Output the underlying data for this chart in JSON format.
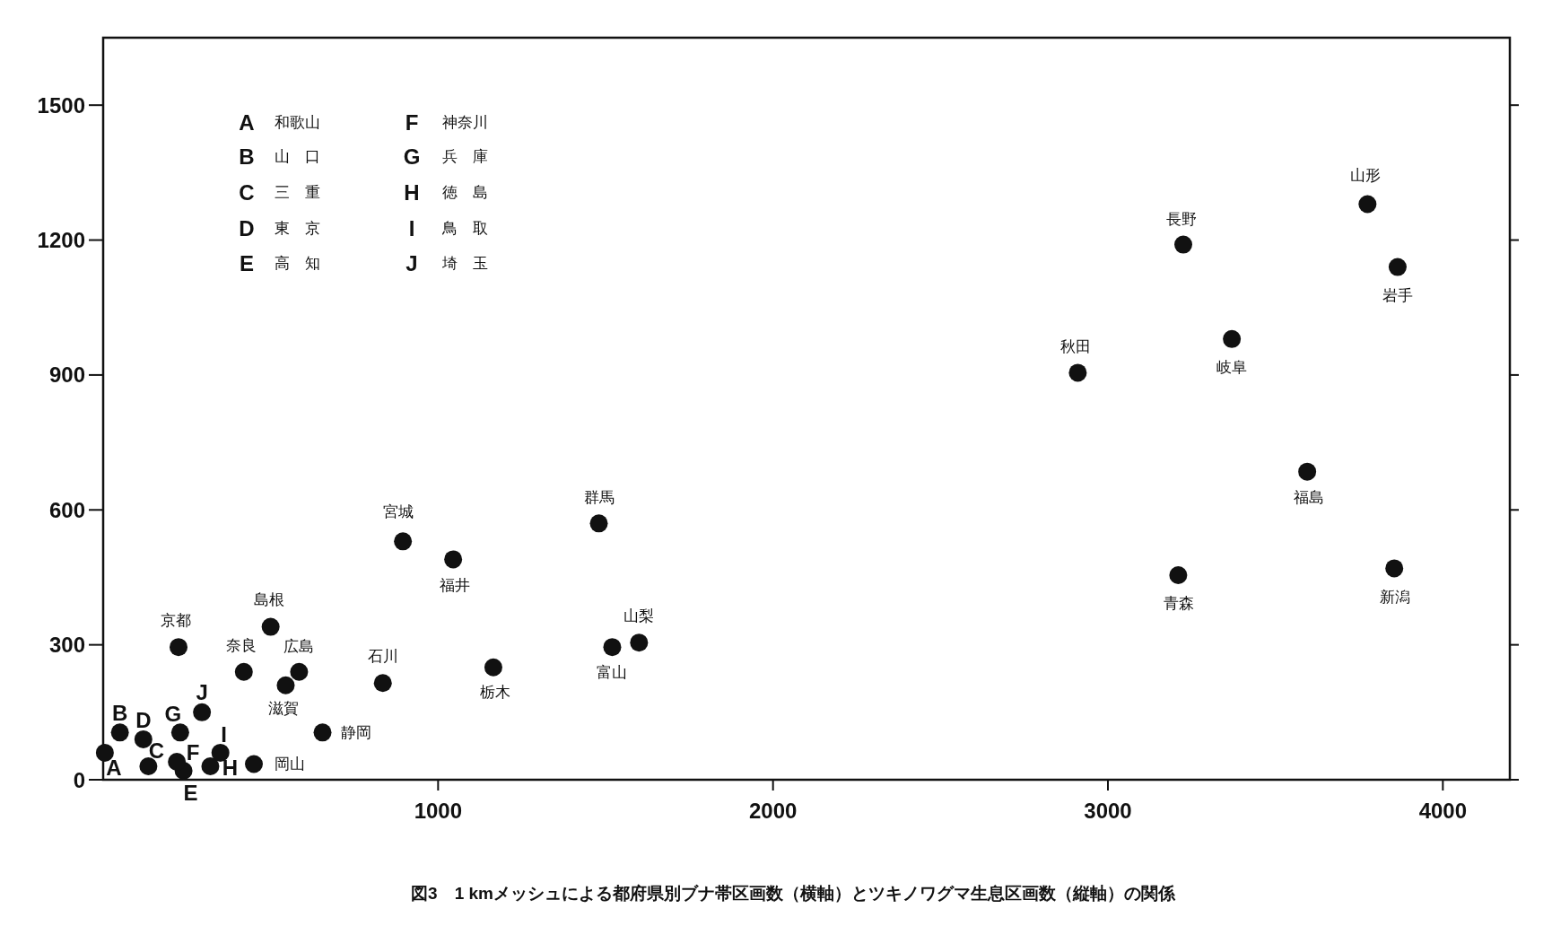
{
  "chart_data": {
    "type": "scatter",
    "series": [
      {
        "color": "#111111",
        "x": [
          5,
          50,
          135,
          120,
          240,
          220,
          230,
          320,
          350,
          295,
          225,
          500,
          420,
          585,
          545,
          835,
          655,
          450,
          895,
          1045,
          1165,
          1480,
          1520,
          1600,
          2910,
          3225,
          3775,
          3865,
          3370,
          3595,
          3210,
          3855
        ],
        "values": [
          60,
          105,
          30,
          90,
          20,
          40,
          105,
          30,
          60,
          150,
          295,
          340,
          240,
          240,
          210,
          215,
          105,
          35,
          530,
          490,
          250,
          570,
          295,
          305,
          905,
          1190,
          1280,
          1140,
          980,
          685,
          455,
          470
        ]
      }
    ],
    "marker": "circle",
    "grid": false,
    "xlim": [
      0,
      4200
    ],
    "ylim": [
      0,
      1650
    ],
    "xticks": [
      1000,
      2000,
      3000,
      4000
    ],
    "yticks": [
      0,
      300,
      600,
      900,
      1200,
      1500
    ],
    "annotations": [
      {
        "text": "A",
        "x": 5,
        "y": 60
      },
      {
        "text": "B",
        "x": 50,
        "y": 105
      },
      {
        "text": "C",
        "x": 135,
        "y": 30
      },
      {
        "text": "D",
        "x": 120,
        "y": 90
      },
      {
        "text": "E",
        "x": 240,
        "y": 20
      },
      {
        "text": "F",
        "x": 220,
        "y": 40
      },
      {
        "text": "G",
        "x": 230,
        "y": 105
      },
      {
        "text": "H",
        "x": 320,
        "y": 30
      },
      {
        "text": "I",
        "x": 350,
        "y": 60
      },
      {
        "text": "J",
        "x": 295,
        "y": 150
      },
      {
        "text": "京都",
        "x": 225,
        "y": 295
      },
      {
        "text": "島根",
        "x": 500,
        "y": 340
      },
      {
        "text": "奈良",
        "x": 420,
        "y": 240
      },
      {
        "text": "広島",
        "x": 585,
        "y": 240
      },
      {
        "text": "滋賀",
        "x": 545,
        "y": 210
      },
      {
        "text": "石川",
        "x": 835,
        "y": 215
      },
      {
        "text": "静岡",
        "x": 655,
        "y": 105
      },
      {
        "text": "岡山",
        "x": 450,
        "y": 35
      },
      {
        "text": "宮城",
        "x": 895,
        "y": 530
      },
      {
        "text": "福井",
        "x": 1045,
        "y": 490
      },
      {
        "text": "栃木",
        "x": 1165,
        "y": 250
      },
      {
        "text": "群馬",
        "x": 1480,
        "y": 570
      },
      {
        "text": "富山",
        "x": 1520,
        "y": 295
      },
      {
        "text": "山梨",
        "x": 1600,
        "y": 305
      },
      {
        "text": "秋田",
        "x": 2910,
        "y": 905
      },
      {
        "text": "長野",
        "x": 3225,
        "y": 1190
      },
      {
        "text": "山形",
        "x": 3775,
        "y": 1280
      },
      {
        "text": "岩手",
        "x": 3865,
        "y": 1140
      },
      {
        "text": "岐阜",
        "x": 3370,
        "y": 980
      },
      {
        "text": "福島",
        "x": 3595,
        "y": 685
      },
      {
        "text": "青森",
        "x": 3210,
        "y": 455
      },
      {
        "text": "新潟",
        "x": 3855,
        "y": 470
      },
      "A",
      "和歌山",
      "B",
      "山　口",
      "C",
      "三　重",
      "D",
      "東　京",
      "E",
      "高　知",
      "F",
      "神奈川",
      "G",
      "兵　庫",
      "H",
      "徳　島",
      "I",
      "鳥　取",
      "J",
      "埼　玉",
      "図3　1 kmメッシュによる都府県別ブナ帯区画数（横軸）とツキノワグマ生息区画数（縦軸）の関係"
    ]
  }
}
